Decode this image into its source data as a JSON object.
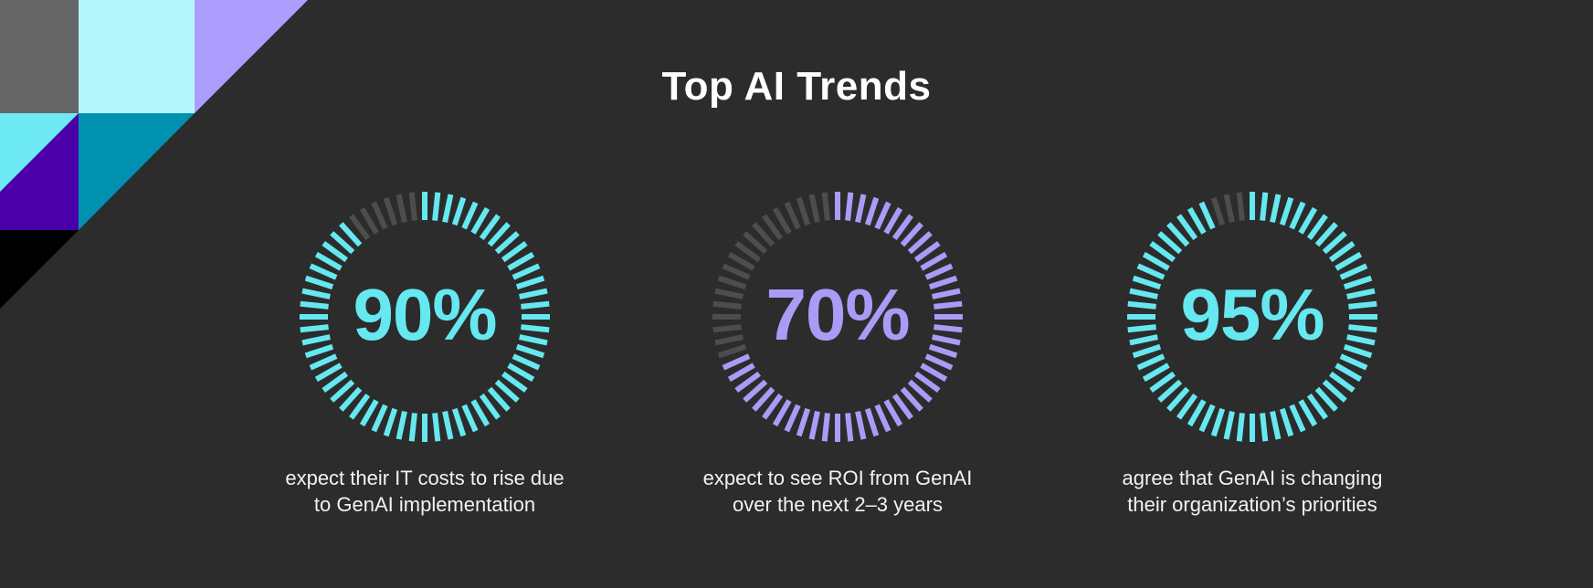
{
  "header": {
    "title": "Top AI Trends"
  },
  "colors": {
    "background": "#2c2c2c",
    "cyan": "#66e8f0",
    "lavender": "#ab9bf7",
    "inactive_tick": "#4d4d4d"
  },
  "stats": [
    {
      "value": "90%",
      "percent": 90,
      "accent": "#66e8f0",
      "caption_line1": "expect their IT costs to rise due",
      "caption_line2": "to GenAI implementation"
    },
    {
      "value": "70%",
      "percent": 70,
      "accent": "#ab9bf7",
      "caption_line1": "expect to see ROI from GenAI",
      "caption_line2": "over the next 2–3 years"
    },
    {
      "value": "95%",
      "percent": 95,
      "accent": "#66e8f0",
      "caption_line1": "agree that GenAI is changing",
      "caption_line2": "their organization’s priorities"
    }
  ]
}
